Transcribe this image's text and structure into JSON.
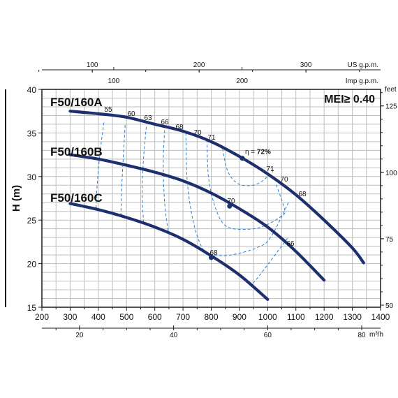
{
  "chart_data": {
    "type": "line",
    "title": "",
    "xlabel": "",
    "ylabel": "H (m)",
    "x_axis": {
      "range": [
        200,
        1400
      ],
      "ticks": [
        200,
        300,
        400,
        500,
        600,
        700,
        800,
        900,
        1000,
        1100,
        1200,
        1300,
        1400
      ]
    },
    "y_axis": {
      "range": [
        15,
        40
      ],
      "ticks": [
        15,
        20,
        25,
        30,
        35,
        40
      ]
    },
    "secondary_axes": {
      "us_gpm": {
        "label": "US g.p.m.",
        "ticks": [
          100,
          200,
          300
        ]
      },
      "imp_gpm": {
        "label": "Imp g.p.m.",
        "ticks": [
          100,
          200
        ]
      },
      "feet": {
        "label": "feet",
        "ticks": [
          50,
          75,
          100,
          125
        ]
      },
      "m3h": {
        "label": "m³/h",
        "ticks": [
          20,
          40,
          60,
          80
        ]
      }
    },
    "grid": true,
    "annotation": "MEI≥ 0.40",
    "series": [
      {
        "name": "F50/160A",
        "x": [
          300,
          400,
          500,
          600,
          700,
          800,
          900,
          1000,
          1100,
          1200,
          1300,
          1340
        ],
        "y": [
          37.5,
          37.2,
          36.8,
          36.0,
          35.2,
          34.0,
          32.3,
          30.3,
          27.9,
          25.0,
          21.8,
          20.1
        ]
      },
      {
        "name": "F50/160B",
        "x": [
          300,
          400,
          500,
          600,
          700,
          800,
          900,
          1000,
          1100,
          1200
        ],
        "y": [
          32.5,
          32.0,
          31.3,
          30.5,
          29.5,
          28.1,
          26.3,
          24.2,
          21.4,
          18.1
        ]
      },
      {
        "name": "F50/160C",
        "x": [
          300,
          400,
          500,
          600,
          700,
          800,
          900,
          1000
        ],
        "y": [
          26.9,
          26.2,
          25.3,
          24.2,
          22.8,
          20.9,
          18.7,
          15.9
        ]
      }
    ],
    "efficiency_contours": [
      {
        "label": "55",
        "points": [
          [
            420,
            36.2
          ],
          [
            405,
            32.5
          ],
          [
            395,
            28.6
          ],
          [
            392,
            26.3
          ]
        ]
      },
      {
        "label": "60",
        "points": [
          [
            495,
            35.9
          ],
          [
            488,
            32.0
          ],
          [
            482,
            28.0
          ],
          [
            480,
            25.5
          ]
        ]
      },
      {
        "label": "63",
        "points": [
          [
            570,
            35.7
          ],
          [
            560,
            32.0
          ],
          [
            555,
            28.5
          ],
          [
            560,
            24.7
          ]
        ]
      },
      {
        "label": "66",
        "points": [
          [
            635,
            35.3
          ],
          [
            630,
            31.5
          ],
          [
            635,
            27.0
          ],
          [
            648,
            23.5
          ]
        ]
      },
      {
        "label": "68",
        "points": [
          [
            710,
            35.0
          ],
          [
            715,
            29.5
          ],
          [
            735,
            25.0
          ],
          [
            765,
            22.0
          ],
          [
            800,
            21.0
          ],
          [
            870,
            21.0
          ],
          [
            960,
            21.8
          ],
          [
            1010,
            23.0
          ],
          [
            1075,
            27.1
          ]
        ]
      },
      {
        "label": "70",
        "points": [
          [
            785,
            34.2
          ],
          [
            790,
            30.0
          ],
          [
            810,
            26.9
          ],
          [
            840,
            24.7
          ],
          [
            880,
            24.0
          ],
          [
            950,
            24.0
          ],
          [
            1000,
            24.5
          ],
          [
            1050,
            25.5
          ],
          [
            1060,
            26.2
          ],
          [
            1030,
            29.1
          ]
        ]
      },
      {
        "label": "71",
        "points": [
          [
            840,
            33.2
          ],
          [
            860,
            30.5
          ],
          [
            900,
            29.1
          ],
          [
            960,
            29.1
          ],
          [
            1010,
            30.3
          ],
          [
            1020,
            30.8
          ]
        ]
      },
      {
        "label": "66",
        "points": [
          [
            1070,
            22.9
          ],
          [
            960,
            18.2
          ],
          [
            940,
            17.8
          ]
        ]
      }
    ],
    "efficiency_labels": [
      "55",
      "60",
      "63",
      "66",
      "68",
      "70",
      "71",
      "71",
      "70",
      "68",
      "70",
      "68",
      "66"
    ],
    "best_efficiency_points": [
      {
        "series": "F50/160A",
        "x": 910,
        "y": 32.1,
        "label": "η = 72%"
      },
      {
        "series": "F50/160B",
        "x": 865,
        "y": 26.6
      },
      {
        "series": "F50/160C",
        "x": 800,
        "y": 20.7
      }
    ]
  }
}
